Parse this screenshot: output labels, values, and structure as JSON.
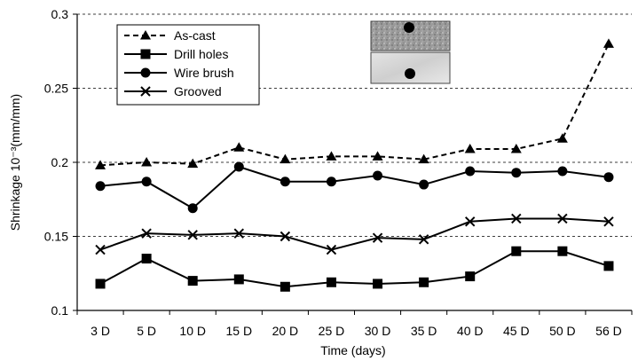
{
  "chart_data": {
    "type": "line",
    "title": "",
    "xlabel": "Time (days)",
    "ylabel": "Shrinkage 10⁻³(mm/mm)",
    "categories": [
      "3 D",
      "5 D",
      "10 D",
      "15 D",
      "20 D",
      "25 D",
      "30 D",
      "35 D",
      "40 D",
      "45 D",
      "50 D",
      "56 D"
    ],
    "ylim": [
      0.1,
      0.3
    ],
    "yticks": [
      "0.1",
      "0.15",
      "0.2",
      "0.25",
      "0.3"
    ],
    "grid": "horizontal-dashed",
    "legend_position": "top-left",
    "series": [
      {
        "name": "As-cast",
        "marker": "triangle",
        "line": "dashed",
        "values": [
          0.198,
          0.2,
          0.199,
          0.21,
          0.202,
          0.204,
          0.204,
          0.202,
          0.209,
          0.209,
          0.216,
          0.28
        ]
      },
      {
        "name": "Drill holes",
        "marker": "square",
        "line": "solid",
        "values": [
          0.118,
          0.135,
          0.12,
          0.121,
          0.116,
          0.119,
          0.118,
          0.119,
          0.123,
          0.14,
          0.14,
          0.13
        ]
      },
      {
        "name": "Wire brush",
        "marker": "circle",
        "line": "solid",
        "values": [
          0.184,
          0.187,
          0.169,
          0.197,
          0.187,
          0.187,
          0.191,
          0.185,
          0.194,
          0.193,
          0.194,
          0.19
        ]
      },
      {
        "name": "Grooved",
        "marker": "cross",
        "line": "solid",
        "values": [
          0.141,
          0.152,
          0.151,
          0.152,
          0.15,
          0.141,
          0.149,
          0.148,
          0.16,
          0.162,
          0.162,
          0.16
        ]
      }
    ]
  }
}
